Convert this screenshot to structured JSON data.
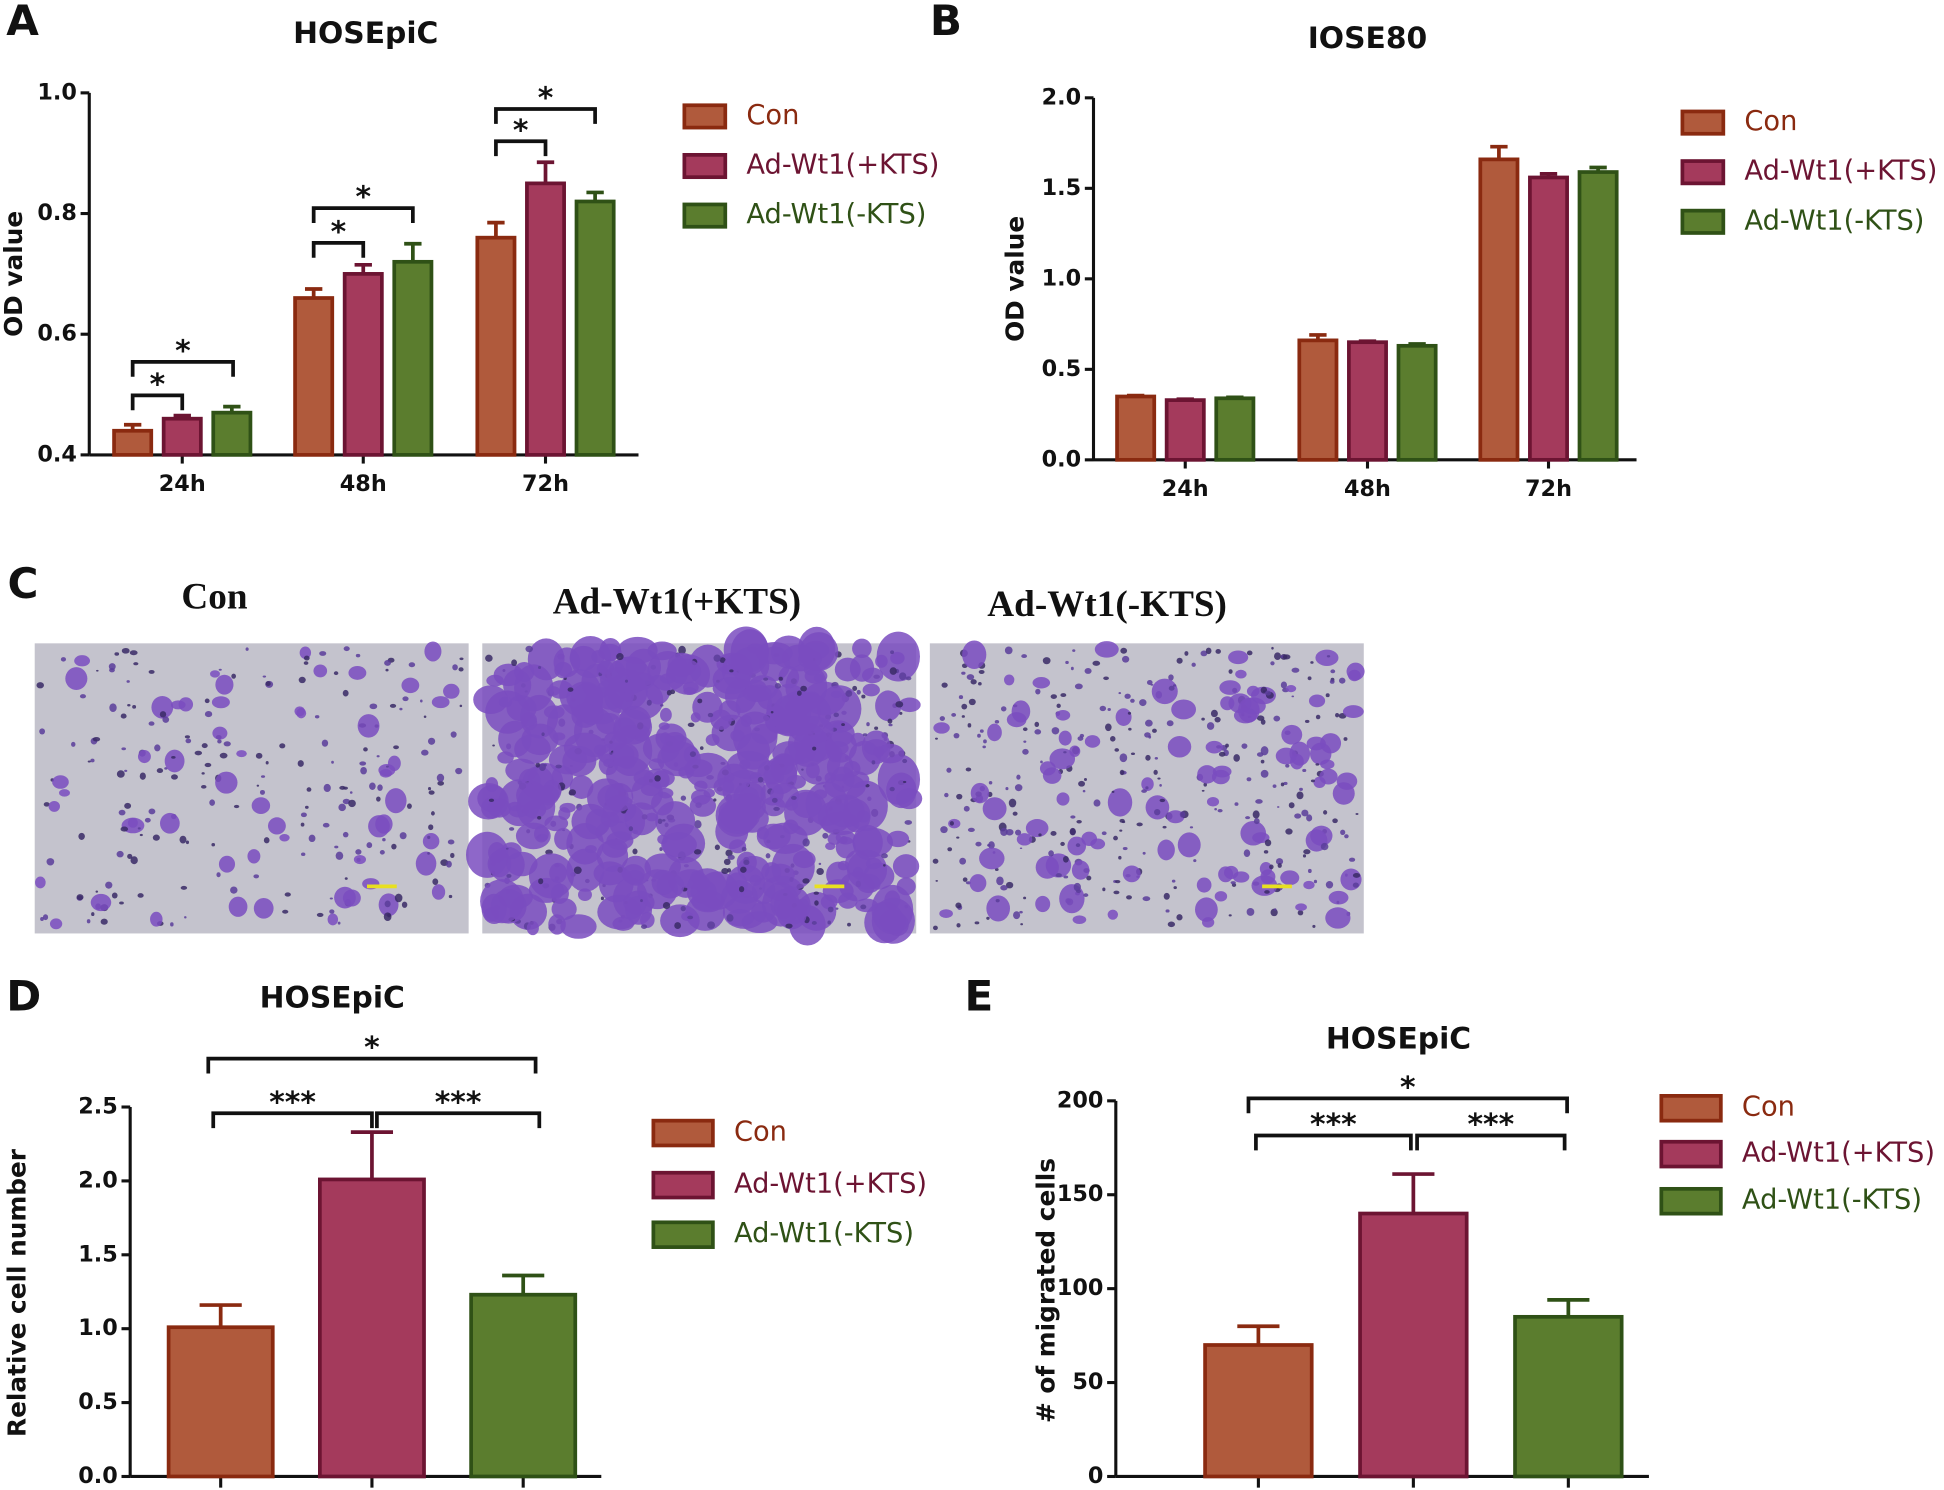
{
  "chart_data": [
    {
      "type": "bar",
      "panel_label": "A",
      "title": "HOSEpiC",
      "y_label": "OD value",
      "categories": [
        "24h",
        "48h",
        "72h"
      ],
      "series": [
        {
          "name": "Con",
          "color": "#b05a3c",
          "edge": "#8a2a10",
          "values": [
            0.44,
            0.66,
            0.76
          ],
          "errors": [
            0.01,
            0.015,
            0.025
          ]
        },
        {
          "name": "Ad-Wt1(+KTS)",
          "color": "#a43a5c",
          "edge": "#6c1432",
          "values": [
            0.46,
            0.7,
            0.85
          ],
          "errors": [
            0.005,
            0.015,
            0.035
          ]
        },
        {
          "name": "Ad-Wt1(-KTS)",
          "color": "#5b7d2e",
          "edge": "#2f5116",
          "values": [
            0.47,
            0.72,
            0.82
          ],
          "errors": [
            0.01,
            0.03,
            0.015
          ]
        }
      ],
      "ylim": [
        0.4,
        1.0
      ],
      "yticks": [
        0.4,
        0.6,
        0.8,
        {
          "value": 1,
          "label": "1.0"
        }
      ],
      "annotations": [
        "*",
        "*",
        "*",
        "*",
        "*",
        "*"
      ]
    },
    {
      "type": "bar",
      "panel_label": "B",
      "title": "IOSE80",
      "y_label": "OD value",
      "categories": [
        "24h",
        "48h",
        "72h"
      ],
      "series": [
        {
          "name": "Con",
          "color": "#b05a3c",
          "edge": "#8a2a10",
          "values": [
            0.35,
            0.66,
            1.66
          ],
          "errors": [
            0.005,
            0.03,
            0.07
          ]
        },
        {
          "name": "Ad-Wt1(+KTS)",
          "color": "#a43a5c",
          "edge": "#6c1432",
          "values": [
            0.33,
            0.65,
            1.56
          ],
          "errors": [
            0.005,
            0.005,
            0.02
          ]
        },
        {
          "name": "Ad-Wt1(-KTS)",
          "color": "#5b7d2e",
          "edge": "#2f5116",
          "values": [
            0.34,
            0.63,
            1.59
          ],
          "errors": [
            0.005,
            0.01,
            0.025
          ]
        }
      ],
      "ylim": [
        0,
        2
      ],
      "yticks": [
        {
          "value": 0,
          "label": "0.0"
        },
        0.5,
        {
          "value": 1,
          "label": "1.0"
        },
        1.5,
        {
          "value": 2,
          "label": "2.0"
        }
      ]
    },
    {
      "type": "bar",
      "panel_label": "D",
      "title": "HOSEpiC",
      "y_label": "Relative cell number",
      "categories": [
        null
      ],
      "series": [
        {
          "name": "Con",
          "color": "#b05a3c",
          "edge": "#8a2a10",
          "values": [
            1.01
          ],
          "errors": [
            0.15
          ]
        },
        {
          "name": "Ad-Wt1(+KTS)",
          "color": "#a43a5c",
          "edge": "#6c1432",
          "values": [
            2.01
          ],
          "errors": [
            0.32
          ]
        },
        {
          "name": "Ad-Wt1(-KTS)",
          "color": "#5b7d2e",
          "edge": "#2f5116",
          "values": [
            1.23
          ],
          "errors": [
            0.13
          ]
        }
      ],
      "ylim": [
        0,
        2.5
      ],
      "yticks": [
        {
          "value": 0,
          "label": "0.0"
        },
        0.5,
        {
          "value": 1,
          "label": "1.0"
        },
        1.5,
        {
          "value": 2,
          "label": "2.0"
        },
        2.5
      ],
      "annotations": [
        "***",
        "***",
        "*"
      ]
    },
    {
      "type": "bar",
      "panel_label": "E",
      "title": "HOSEpiC",
      "y_label": "# of migrated cells",
      "categories": [
        null
      ],
      "series": [
        {
          "name": "Con",
          "color": "#b05a3c",
          "edge": "#8a2a10",
          "values": [
            70
          ],
          "errors": [
            10
          ]
        },
        {
          "name": "Ad-Wt1(+KTS)",
          "color": "#a43a5c",
          "edge": "#6c1432",
          "values": [
            140
          ],
          "errors": [
            21
          ]
        },
        {
          "name": "Ad-Wt1(-KTS)",
          "color": "#5b7d2e",
          "edge": "#2f5116",
          "values": [
            85
          ],
          "errors": [
            9
          ]
        }
      ],
      "ylim": [
        0,
        200
      ],
      "yticks": [
        0,
        50,
        100,
        150,
        200
      ],
      "annotations": [
        "***",
        "***",
        "*"
      ]
    }
  ],
  "panel_c": {
    "panel_label": "C",
    "titles": [
      "Con",
      "Ad-Wt1(+KTS)",
      "Ad-Wt1(-KTS)"
    ]
  }
}
